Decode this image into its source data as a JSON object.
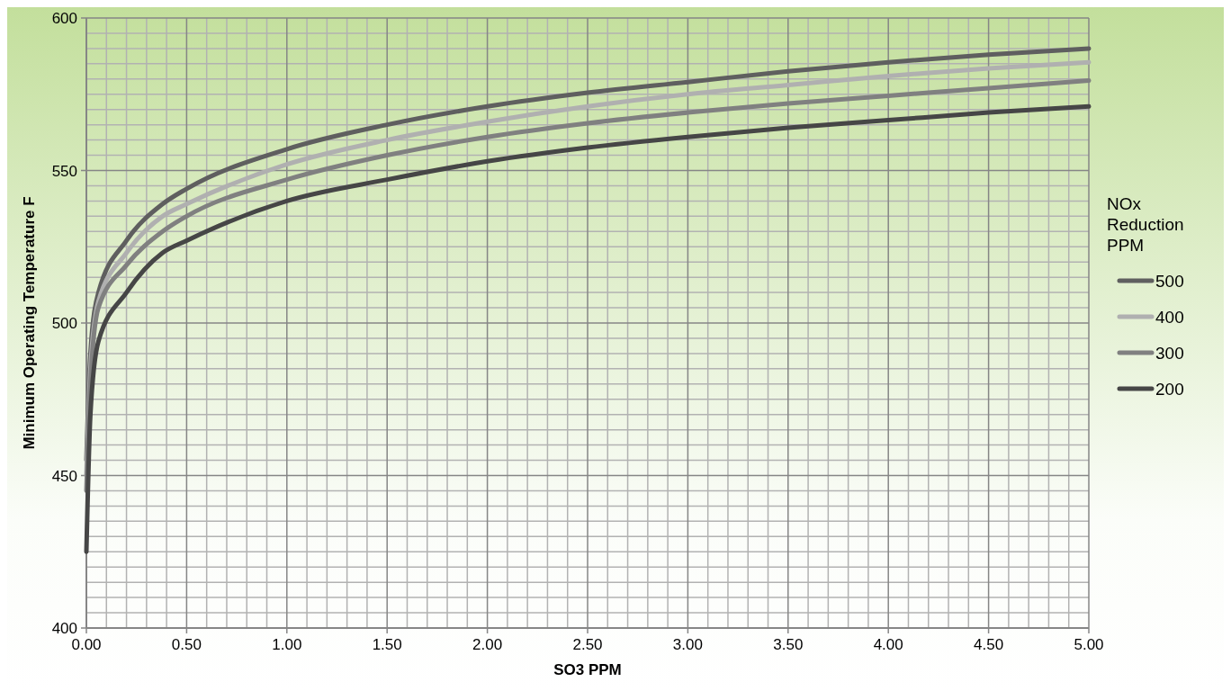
{
  "chart_data": {
    "type": "line",
    "xlabel": "SO3 PPM",
    "ylabel": "Minimum Operating Temperature F",
    "legend_title": "NOx Reduction PPM",
    "legend": "right",
    "grid": true,
    "line_style": "solid",
    "xlim": [
      0,
      5
    ],
    "ylim": [
      400,
      600
    ],
    "xticks": [
      {
        "value": 0,
        "label": "0.00"
      },
      {
        "value": 0.5,
        "label": "0.50"
      },
      {
        "value": 1,
        "label": "1.00"
      },
      {
        "value": 1.5,
        "label": "1.50"
      },
      {
        "value": 2,
        "label": "2.00"
      },
      {
        "value": 2.5,
        "label": "2.50"
      },
      {
        "value": 3,
        "label": "3.00"
      },
      {
        "value": 3.5,
        "label": "3.50"
      },
      {
        "value": 4,
        "label": "4.00"
      },
      {
        "value": 4.5,
        "label": "4.50"
      },
      {
        "value": 5,
        "label": "5.00"
      }
    ],
    "yticks": [
      400,
      450,
      500,
      550,
      600
    ],
    "x": [
      0,
      0.02,
      0.06,
      0.2,
      0.38,
      0.5,
      1,
      1.5,
      2,
      2.5,
      3,
      3.5,
      4,
      4.5,
      5
    ],
    "series": [
      {
        "name": "500",
        "color": "#5f5f5f",
        "values": [
          455,
          490,
          510,
          527,
          539,
          544,
          557,
          565,
          571,
          575.5,
          579,
          582.5,
          585.5,
          588,
          590
        ]
      },
      {
        "name": "400",
        "color": "#b0b0b0",
        "values": [
          450,
          485,
          507,
          523,
          535,
          539,
          552,
          560,
          566,
          571,
          575,
          578,
          581,
          583.5,
          585.5
        ]
      },
      {
        "name": "300",
        "color": "#808080",
        "values": [
          445,
          480,
          505,
          519,
          530,
          535,
          547,
          555,
          561,
          565.5,
          569,
          572,
          574.5,
          577,
          579.5
        ]
      },
      {
        "name": "200",
        "color": "#464646",
        "values": [
          425,
          470,
          494,
          510,
          523,
          527,
          540,
          547,
          553,
          557.5,
          561,
          564,
          566.5,
          569,
          571
        ]
      }
    ]
  }
}
